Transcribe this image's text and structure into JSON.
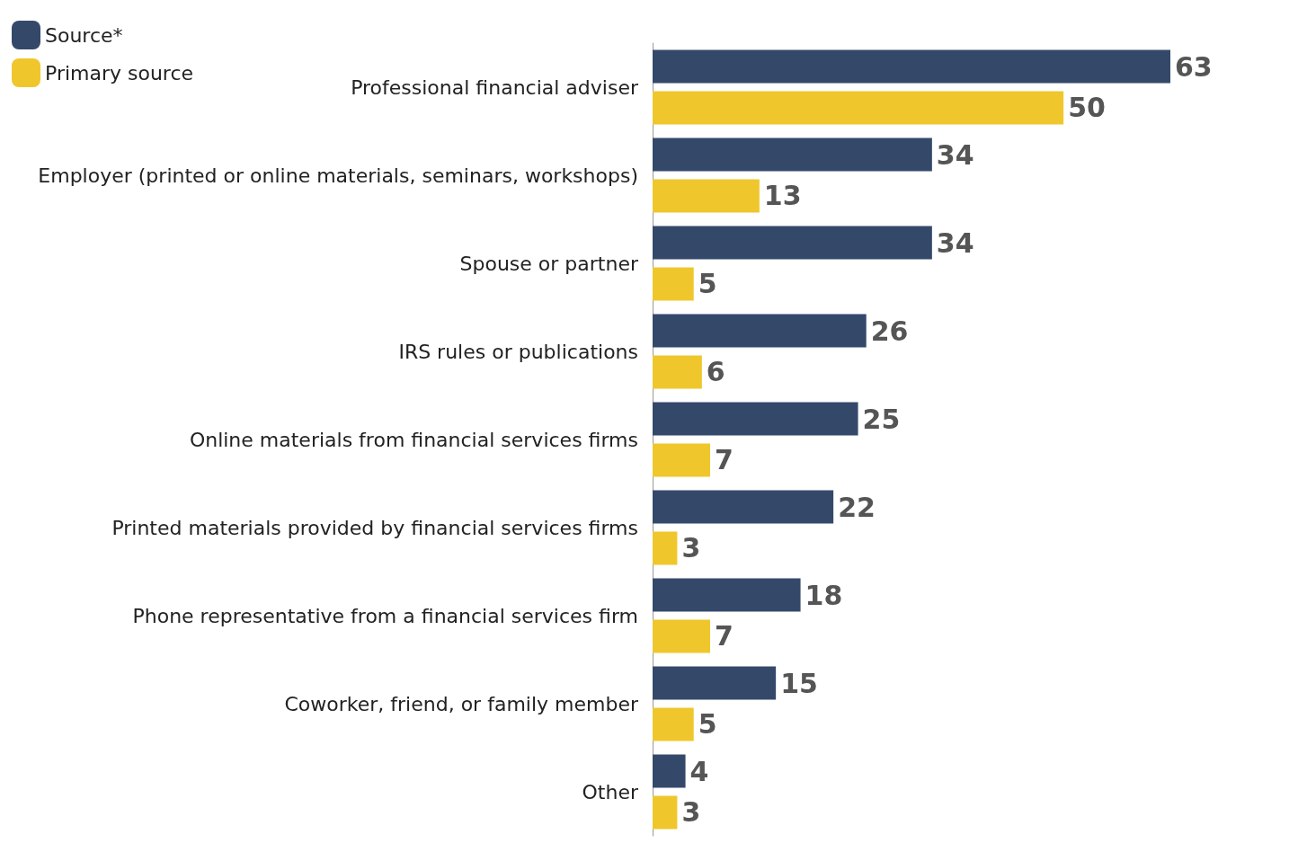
{
  "chart_data": {
    "type": "bar",
    "orientation": "horizontal",
    "categories": [
      "Professional financial adviser",
      "Employer (printed or online materials, seminars, workshops)",
      "Spouse or partner",
      "IRS rules or publications",
      "Online materials from financial services firms",
      "Printed materials provided by financial services firms",
      "Phone representative from a financial services firm",
      "Coworker, friend, or family member",
      "Other"
    ],
    "series": [
      {
        "name": "Source*",
        "color": "#34496a",
        "values": [
          63,
          34,
          34,
          26,
          25,
          22,
          18,
          15,
          4
        ]
      },
      {
        "name": "Primary source",
        "color": "#efc72c",
        "values": [
          50,
          13,
          5,
          6,
          7,
          3,
          7,
          5,
          3
        ]
      }
    ],
    "data_labels": true,
    "legend": "top left"
  }
}
